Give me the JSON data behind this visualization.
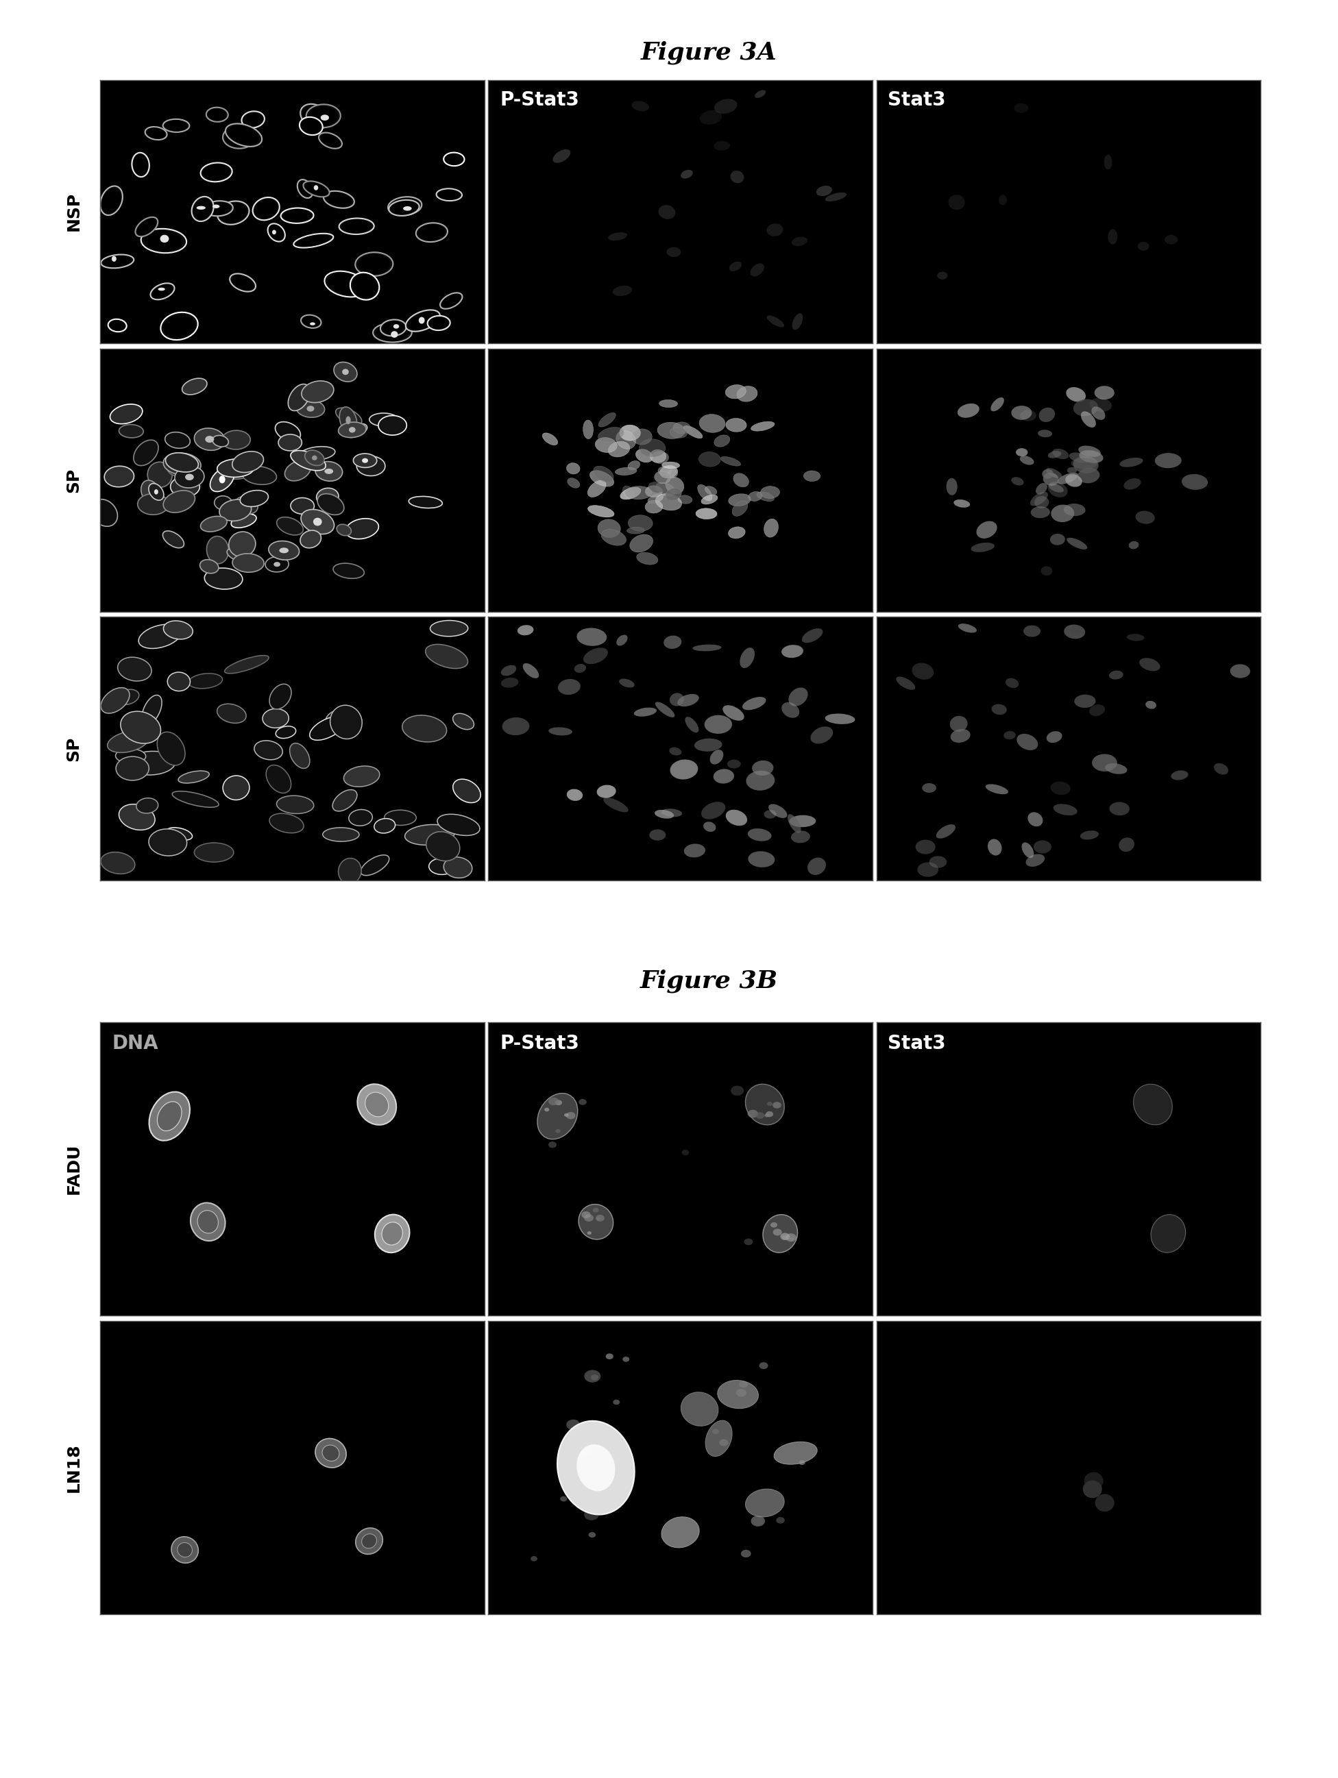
{
  "fig3A_title": "Figure 3A",
  "fig3B_title": "Figure 3B",
  "fig3A_row_labels": [
    "NSP",
    "SP",
    "SP"
  ],
  "fig3A_col_labels": [
    "",
    "P-Stat3",
    "Stat3"
  ],
  "fig3B_row_labels": [
    "FADU",
    "LN18"
  ],
  "fig3B_col_labels": [
    "DNA",
    "P-Stat3",
    "Stat3"
  ],
  "bg_color": "#000000",
  "white_color": "#ffffff",
  "panel_bg": "#000000",
  "title_fontsize": 26,
  "col_label_fontsize": 20,
  "row_label_fontsize": 18,
  "fig_bg": "#ffffff",
  "border_color": "#555555",
  "border_lw": 1.0
}
